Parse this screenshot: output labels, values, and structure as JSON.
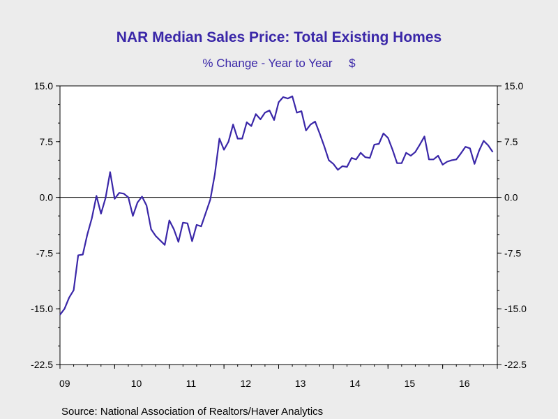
{
  "chart_data": {
    "type": "line",
    "title": "NAR Median Sales Price: Total Existing Homes",
    "subtitle": "% Change - Year to Year     $",
    "source": "Source:  National Association of Realtors/Haver Analytics",
    "ylim": [
      -22.5,
      15.0
    ],
    "yticks": [
      15.0,
      7.5,
      0.0,
      -7.5,
      -15.0,
      -22.5
    ],
    "ytick_labels": [
      "15.0",
      "7.5",
      "0.0",
      "-7.5",
      "-15.0",
      "-22.5"
    ],
    "xlim": [
      2009.0,
      2017.0
    ],
    "xtick_labels": [
      "09",
      "10",
      "11",
      "12",
      "13",
      "14",
      "15",
      "16"
    ],
    "grid": false,
    "colors": {
      "line": "#3a27a8",
      "title": "#3a27a8",
      "background": "#ececec",
      "plot_bg": "#ffffff"
    },
    "series": [
      {
        "x": [
          2009.0,
          2009.083,
          2009.167,
          2009.25,
          2009.333,
          2009.417,
          2009.5,
          2009.583,
          2009.667,
          2009.75,
          2009.833,
          2009.917,
          2010.0,
          2010.083,
          2010.167,
          2010.25,
          2010.333,
          2010.417,
          2010.5,
          2010.583,
          2010.667,
          2010.75,
          2010.833,
          2010.917,
          2011.0,
          2011.083,
          2011.167,
          2011.25,
          2011.333,
          2011.417,
          2011.5,
          2011.583,
          2011.667,
          2011.75,
          2011.833,
          2011.917,
          2012.0,
          2012.083,
          2012.167,
          2012.25,
          2012.333,
          2012.417,
          2012.5,
          2012.583,
          2012.667,
          2012.75,
          2012.833,
          2012.917,
          2013.0,
          2013.083,
          2013.167,
          2013.25,
          2013.333,
          2013.417,
          2013.5,
          2013.583,
          2013.667,
          2013.75,
          2013.833,
          2013.917,
          2014.0,
          2014.083,
          2014.167,
          2014.25,
          2014.333,
          2014.417,
          2014.5,
          2014.583,
          2014.667,
          2014.75,
          2014.833,
          2014.917,
          2015.0,
          2015.083,
          2015.167,
          2015.25,
          2015.333,
          2015.417,
          2015.5,
          2015.583,
          2015.667,
          2015.75,
          2015.833,
          2015.917,
          2016.0,
          2016.083,
          2016.167,
          2016.25,
          2016.333,
          2016.417,
          2016.5,
          2016.583,
          2016.667,
          2016.75,
          2016.833,
          2016.917
        ],
        "values": [
          -15.8,
          -15.0,
          -13.5,
          -12.5,
          -7.8,
          -7.7,
          -5.0,
          -2.8,
          0.2,
          -2.2,
          -0.1,
          3.4,
          -0.2,
          0.6,
          0.5,
          0.0,
          -2.5,
          -0.7,
          0.1,
          -1.1,
          -4.3,
          -5.2,
          -5.8,
          -6.4,
          -3.1,
          -4.3,
          -6.0,
          -3.4,
          -3.5,
          -5.9,
          -3.7,
          -3.9,
          -2.1,
          -0.3,
          3.1,
          7.9,
          6.4,
          7.5,
          9.8,
          7.9,
          7.9,
          10.1,
          9.6,
          11.2,
          10.5,
          11.4,
          11.7,
          10.4,
          12.8,
          13.5,
          13.3,
          13.6,
          11.4,
          11.6,
          9.0,
          9.8,
          10.2,
          8.6,
          6.9,
          5.0,
          4.5,
          3.7,
          4.2,
          4.1,
          5.3,
          5.1,
          6.0,
          5.4,
          5.3,
          7.1,
          7.2,
          8.6,
          8.0,
          6.4,
          4.6,
          4.6,
          6.0,
          5.6,
          6.1,
          7.1,
          8.2,
          5.1,
          5.1,
          5.6,
          4.4,
          4.8,
          5.0,
          5.1,
          5.9,
          6.8,
          6.6,
          4.5,
          6.3,
          7.6,
          7.0,
          6.1
        ]
      }
    ]
  }
}
